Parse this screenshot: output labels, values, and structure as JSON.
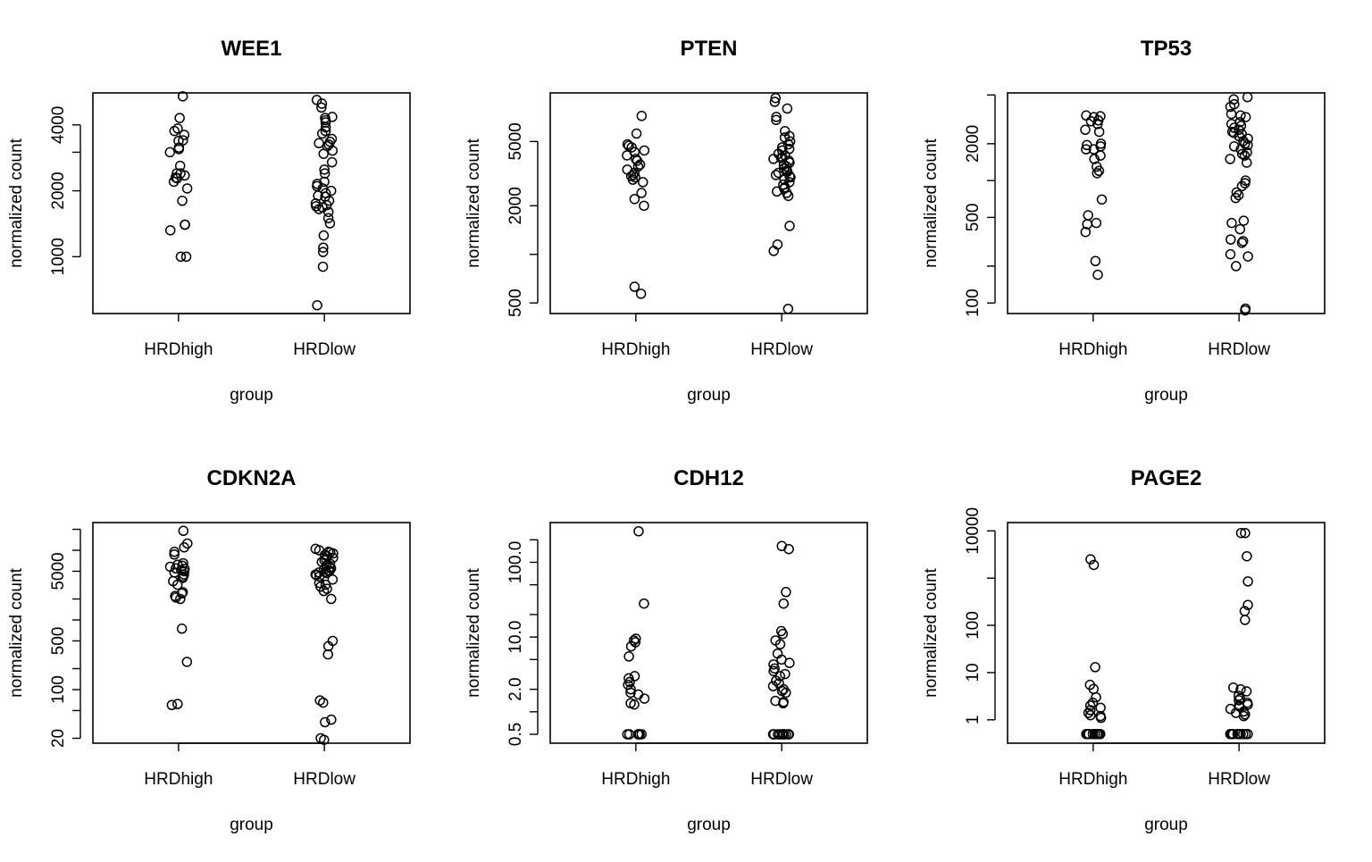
{
  "chart_data": [
    {
      "type": "scatter",
      "title": "WEE1",
      "xlabel": "group",
      "ylabel": "normalized count",
      "scale": "log",
      "categories": [
        "HRDhigh",
        "HRDlow"
      ],
      "ylim": [
        550,
        5600
      ],
      "yticks": [
        1000,
        2000,
        4000
      ],
      "ytick_labels": [
        "1000",
        "2000",
        "4000"
      ],
      "yticks_minor": [
        3000
      ],
      "series": [
        {
          "name": "HRDhigh",
          "values": [
            5400,
            4300,
            3850,
            3750,
            3600,
            3400,
            3380,
            3150,
            3100,
            3000,
            2600,
            2400,
            2400,
            2350,
            2300,
            2280,
            2200,
            2050,
            1800,
            1400,
            1400,
            1320,
            1000,
            1000
          ]
        },
        {
          "name": "HRDlow",
          "values": [
            5200,
            5000,
            4800,
            4350,
            4300,
            4200,
            4100,
            3900,
            3750,
            3650,
            3450,
            3350,
            3300,
            3250,
            3200,
            3050,
            2950,
            2700,
            2500,
            2400,
            2200,
            2150,
            2100,
            2050,
            2000,
            1950,
            1900,
            1880,
            1800,
            1750,
            1720,
            1700,
            1680,
            1650,
            1600,
            1500,
            1420,
            1250,
            1100,
            1050,
            900,
            600
          ]
        }
      ]
    },
    {
      "type": "scatter",
      "title": "PTEN",
      "xlabel": "group",
      "ylabel": "normalized count",
      "scale": "log",
      "categories": [
        "HRDhigh",
        "HRDlow"
      ],
      "ylim": [
        430,
        10000
      ],
      "yticks": [
        500,
        2000,
        5000
      ],
      "ytick_labels": [
        "500",
        "2000",
        "5000"
      ],
      "yticks_minor": [
        1000
      ],
      "series": [
        {
          "name": "HRDhigh",
          "values": [
            7200,
            5600,
            4800,
            4700,
            4600,
            4400,
            4300,
            4100,
            3900,
            3800,
            3600,
            3500,
            3350,
            3200,
            3100,
            3050,
            3000,
            2900,
            2800,
            2400,
            2200,
            2000,
            630,
            570
          ]
        },
        {
          "name": "HRDlow",
          "values": [
            9300,
            8800,
            8000,
            7100,
            6800,
            5800,
            5400,
            5300,
            5000,
            4800,
            4600,
            4500,
            4400,
            4200,
            4100,
            4000,
            3950,
            3900,
            3800,
            3700,
            3600,
            3500,
            3400,
            3300,
            3250,
            3200,
            3100,
            3050,
            3000,
            2900,
            2800,
            2700,
            2600,
            2550,
            2450,
            2400,
            2300,
            1500,
            1150,
            1050,
            460
          ]
        }
      ]
    },
    {
      "type": "scatter",
      "title": "TP53",
      "xlabel": "group",
      "ylabel": "normalized count",
      "scale": "log",
      "categories": [
        "HRDhigh",
        "HRDlow"
      ],
      "ylim": [
        82,
        5200
      ],
      "yticks": [
        100,
        500,
        2000
      ],
      "ytick_labels": [
        "100",
        "500",
        "2000"
      ],
      "yticks_minor": [
        200,
        1000,
        5000
      ],
      "series": [
        {
          "name": "HRDhigh",
          "values": [
            3400,
            3350,
            3300,
            3100,
            3050,
            2900,
            2600,
            2500,
            2000,
            1950,
            1900,
            1800,
            1800,
            1600,
            1500,
            1300,
            1200,
            1150,
            700,
            520,
            450,
            440,
            380,
            220,
            170
          ]
        },
        {
          "name": "HRDlow",
          "values": [
            4800,
            4600,
            4200,
            4000,
            3500,
            3400,
            3300,
            3000,
            2900,
            2800,
            2700,
            2600,
            2500,
            2450,
            2400,
            2300,
            2200,
            2100,
            2000,
            1950,
            1900,
            1800,
            1700,
            1650,
            1600,
            1500,
            1400,
            1000,
            950,
            900,
            800,
            760,
            720,
            470,
            450,
            400,
            330,
            320,
            310,
            250,
            240,
            200,
            90,
            87
          ]
        }
      ]
    },
    {
      "type": "scatter",
      "title": "CDKN2A",
      "xlabel": "group",
      "ylabel": "normalized count",
      "scale": "log",
      "categories": [
        "HRDhigh",
        "HRDlow"
      ],
      "ylim": [
        17,
        25000
      ],
      "yticks": [
        20,
        100,
        500,
        5000
      ],
      "ytick_labels": [
        "20",
        "100",
        "500",
        "5000"
      ],
      "yticks_minor": [
        50,
        200,
        1000,
        2000,
        10000,
        20000
      ],
      "series": [
        {
          "name": "HRDhigh",
          "values": [
            19000,
            12500,
            11000,
            9500,
            8700,
            6500,
            6200,
            6000,
            5800,
            5500,
            5400,
            5200,
            5000,
            4800,
            4500,
            4200,
            4000,
            3600,
            3200,
            2500,
            2400,
            2200,
            2100,
            2000,
            750,
            250,
            62,
            60
          ]
        },
        {
          "name": "HRDlow",
          "values": [
            10500,
            10000,
            9500,
            9300,
            9000,
            8600,
            8200,
            7800,
            7500,
            7200,
            6800,
            6400,
            6000,
            5700,
            5500,
            5300,
            5100,
            5000,
            4900,
            4800,
            4700,
            4500,
            4400,
            4200,
            3800,
            3400,
            3200,
            3000,
            2800,
            2600,
            2000,
            500,
            420,
            320,
            70,
            65,
            37,
            34,
            20,
            19
          ]
        }
      ]
    },
    {
      "type": "scatter",
      "title": "CDH12",
      "xlabel": "group",
      "ylabel": "normalized count",
      "scale": "log",
      "categories": [
        "HRDhigh",
        "HRDlow"
      ],
      "ylim": [
        0.38,
        340
      ],
      "yticks": [
        0.5,
        2.0,
        10.0,
        100.0
      ],
      "ytick_labels": [
        "0.5",
        "2.0",
        "10.0",
        "100.0"
      ],
      "yticks_minor": [
        1.0,
        5.0,
        20.0,
        50.0,
        200.0
      ],
      "series": [
        {
          "name": "HRDhigh",
          "values": [
            260,
            28,
            9.5,
            9.0,
            8.5,
            7.5,
            5.5,
            3.0,
            2.8,
            2.5,
            2.3,
            2.0,
            1.8,
            1.7,
            1.5,
            1.3,
            1.25,
            0.5,
            0.5,
            0.5,
            0.5,
            0.5,
            0.5,
            0.5
          ]
        },
        {
          "name": "HRDlow",
          "values": [
            165,
            150,
            40,
            28,
            12,
            11,
            9.0,
            8.0,
            6.0,
            5.0,
            4.5,
            4.3,
            3.8,
            3.5,
            3.2,
            3.0,
            2.6,
            2.4,
            2.2,
            2.0,
            1.9,
            1.8,
            1.4,
            1.35,
            1.3,
            0.5,
            0.5,
            0.5,
            0.5,
            0.5,
            0.5,
            0.5,
            0.5,
            0.5,
            0.5,
            0.5,
            0.5
          ]
        }
      ]
    },
    {
      "type": "scatter",
      "title": "PAGE2",
      "xlabel": "group",
      "ylabel": "normalized count",
      "scale": "log",
      "categories": [
        "HRDhigh",
        "HRDlow"
      ],
      "ylim": [
        0.32,
        15000
      ],
      "yticks": [
        1,
        10,
        100,
        10000
      ],
      "ytick_labels": [
        "1",
        "10",
        "100",
        "10000"
      ],
      "yticks_minor": [
        1000
      ],
      "series": [
        {
          "name": "HRDhigh",
          "values": [
            2500,
            1900,
            13,
            5.5,
            4.5,
            3.0,
            2.3,
            2.0,
            1.8,
            1.6,
            1.4,
            1.25,
            1.2,
            1.1,
            0.5,
            0.5,
            0.5,
            0.5,
            0.5,
            0.5,
            0.5,
            0.5,
            0.5,
            0.5
          ]
        },
        {
          "name": "HRDlow",
          "values": [
            9000,
            9000,
            2900,
            850,
            270,
            200,
            130,
            4.8,
            4.4,
            4.0,
            3.2,
            2.8,
            2.6,
            2.3,
            2.1,
            2.0,
            1.9,
            1.7,
            1.5,
            1.4,
            1.3,
            1.2,
            0.5,
            0.5,
            0.5,
            0.5,
            0.5,
            0.5,
            0.5,
            0.5,
            0.5,
            0.5,
            0.5,
            0.5
          ]
        }
      ]
    }
  ]
}
